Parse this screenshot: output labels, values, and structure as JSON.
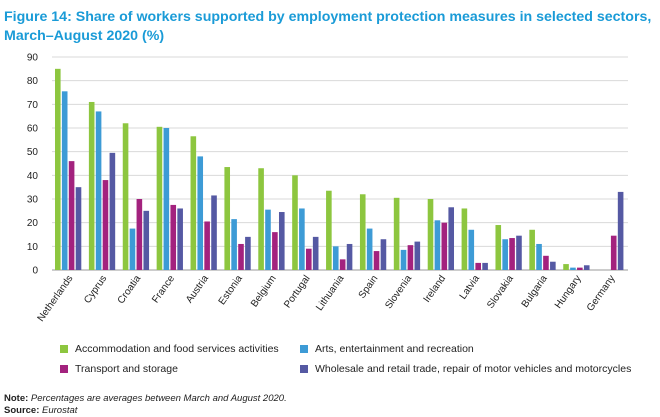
{
  "title": "Figure 14: Share of workers supported by employment protection measures in selected sectors, March–August 2020 (%)",
  "note_label": "Note:",
  "note_text": "Percentages are averages between March and August 2020.",
  "source_label": "Source:",
  "source_text": "Eurostat",
  "chart_data": {
    "type": "bar",
    "title": "Share of workers supported by employment protection measures in selected sectors, March–August 2020 (%)",
    "xlabel": "",
    "ylabel": "",
    "ylim": [
      0,
      90
    ],
    "yticks": [
      0,
      10,
      20,
      30,
      40,
      50,
      60,
      70,
      80,
      90
    ],
    "grid": true,
    "legend_position": "bottom",
    "categories": [
      "Netherlands",
      "Cyprus",
      "Croatia",
      "France",
      "Austria",
      "Estonia",
      "Belgium",
      "Portugal",
      "Lithuania",
      "Spain",
      "Slovenia",
      "Ireland",
      "Latvia",
      "Slovakia",
      "Bulgaria",
      "Hungary",
      "Germany"
    ],
    "series": [
      {
        "name": "Accommodation and food services activities",
        "color": "#8dc63f",
        "values": [
          85,
          71,
          62,
          60.5,
          56.5,
          43.5,
          43,
          40,
          33.5,
          32,
          30.5,
          30,
          26,
          19,
          17,
          2.5,
          null
        ]
      },
      {
        "name": "Arts, entertainment and recreation",
        "color": "#3d9bd6",
        "values": [
          75.5,
          67,
          17.5,
          60,
          48,
          21.5,
          25.5,
          26,
          10,
          17.5,
          8.5,
          21,
          17,
          13,
          11,
          1,
          null
        ]
      },
      {
        "name": "Transport and storage",
        "color": "#a3227e",
        "values": [
          46,
          38,
          30,
          27.5,
          20.5,
          11,
          16,
          9,
          4.5,
          8,
          10.5,
          20,
          3,
          13.5,
          6,
          1,
          14.5
        ]
      },
      {
        "name": "Wholesale and retail trade, repair of motor vehicles and motorcycles",
        "color": "#5559a3",
        "values": [
          35,
          49.5,
          25,
          26,
          31.5,
          14,
          24.5,
          14,
          11,
          13,
          12,
          26.5,
          3,
          14.5,
          3.5,
          2,
          33
        ]
      }
    ]
  }
}
